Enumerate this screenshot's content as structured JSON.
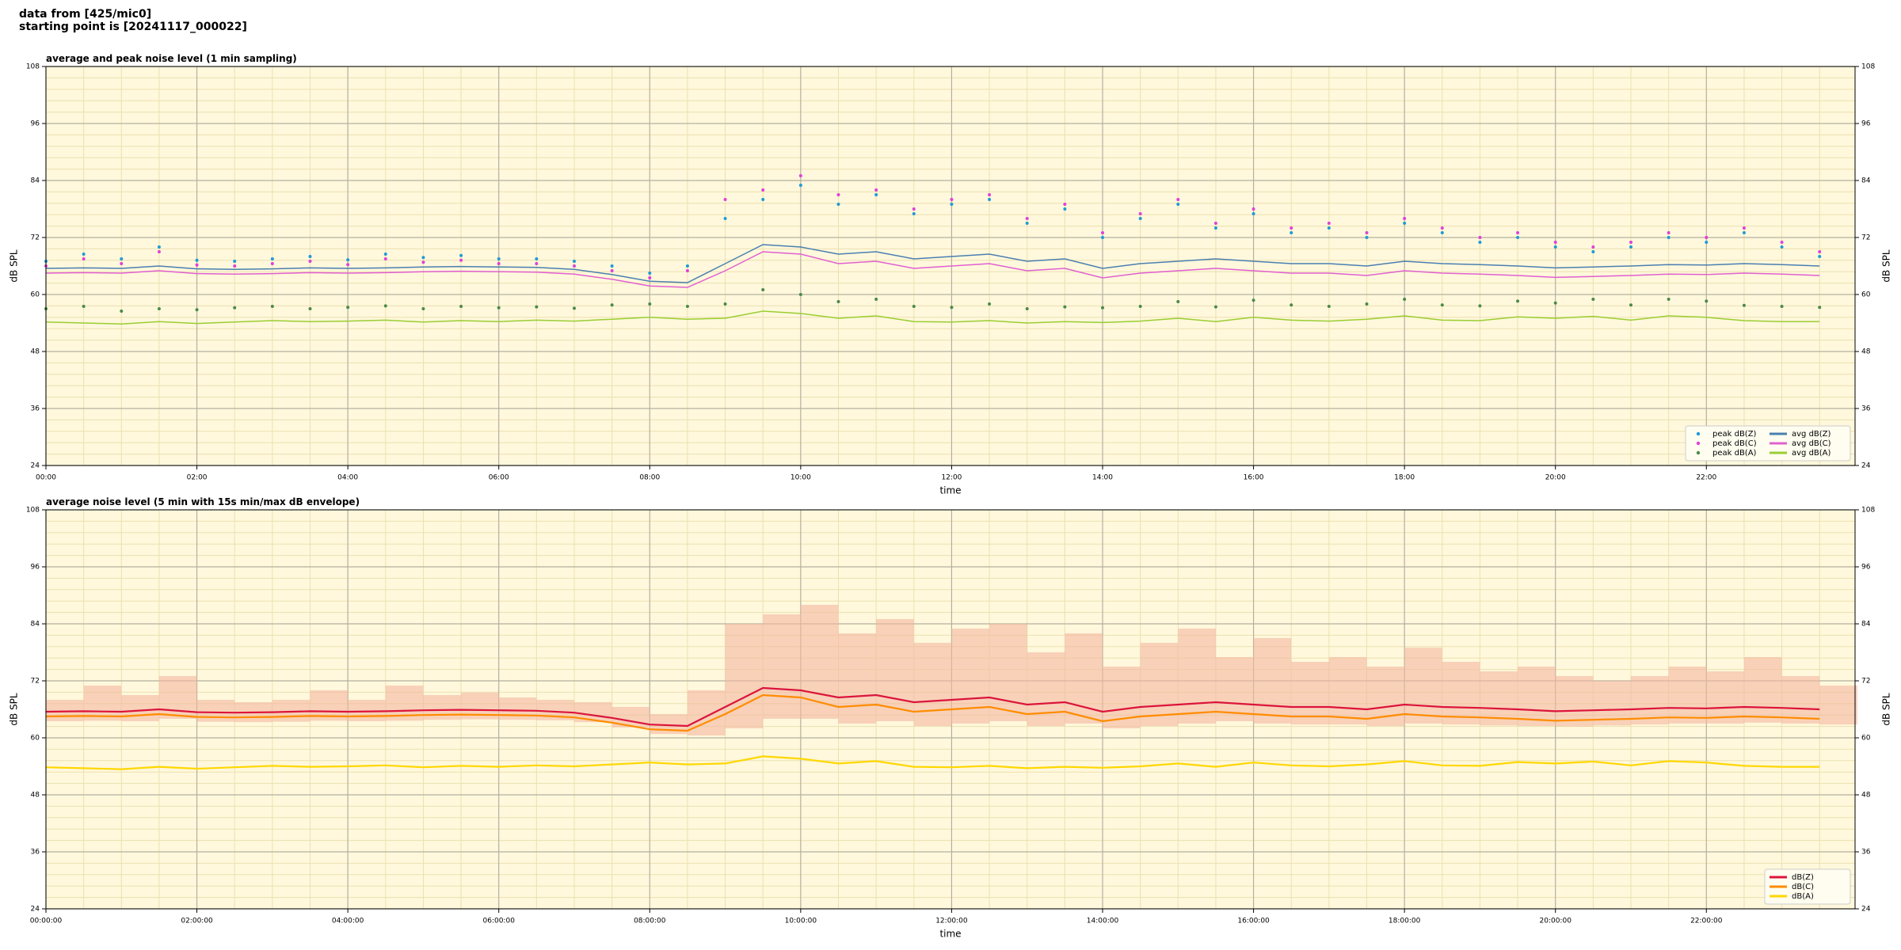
{
  "header": [
    "data from [425/mic0]",
    "starting point is [20241117_000022]"
  ],
  "chart_data": [
    {
      "type": "line",
      "title": "average and peak noise level (1 min sampling)",
      "xlabel": "time",
      "ylabel": "dB SPL",
      "facecolor": "#fff8dc",
      "grid": true,
      "legend": "lower right",
      "legend_columns": 2,
      "xlim": [
        0,
        23.97
      ],
      "ylim": [
        24,
        108
      ],
      "yticks": [
        24,
        36,
        48,
        60,
        72,
        84,
        96,
        108
      ],
      "xticks": [
        {
          "value": 0,
          "label": "00:00"
        },
        {
          "value": 2,
          "label": "02:00"
        },
        {
          "value": 4,
          "label": "04:00"
        },
        {
          "value": 6,
          "label": "06:00"
        },
        {
          "value": 8,
          "label": "08:00"
        },
        {
          "value": 10,
          "label": "10:00"
        },
        {
          "value": 12,
          "label": "12:00"
        },
        {
          "value": 14,
          "label": "14:00"
        },
        {
          "value": 16,
          "label": "16:00"
        },
        {
          "value": 18,
          "label": "18:00"
        },
        {
          "value": 20,
          "label": "20:00"
        },
        {
          "value": 22,
          "label": "22:00"
        }
      ],
      "x": [
        0,
        0.5,
        1,
        1.5,
        2,
        2.5,
        3,
        3.5,
        4,
        4.5,
        5,
        5.5,
        6,
        6.5,
        7,
        7.5,
        8,
        8.5,
        9,
        9.5,
        10,
        10.5,
        11,
        11.5,
        12,
        12.5,
        13,
        13.5,
        14,
        14.5,
        15,
        15.5,
        16,
        16.5,
        17,
        17.5,
        18,
        18.5,
        19,
        19.5,
        20,
        20.5,
        21,
        21.5,
        22,
        22.5,
        23,
        23.5
      ],
      "series": [
        {
          "name": "peak dB(Z)",
          "style": "dots",
          "color": "#1f9bd6",
          "values": [
            67,
            68.5,
            67.5,
            70,
            67.2,
            67,
            67.5,
            68,
            67.3,
            68.5,
            67.8,
            68.2,
            67.5,
            67.5,
            67,
            66,
            64.5,
            66,
            76,
            80,
            83,
            79,
            81,
            77,
            79,
            80,
            75,
            78,
            72,
            76,
            79,
            74,
            77,
            73,
            74,
            72,
            75,
            73,
            71,
            72,
            70,
            69,
            70,
            72,
            71,
            73,
            70,
            68
          ]
        },
        {
          "name": "peak dB(C)",
          "style": "dots",
          "color": "#e040d8",
          "values": [
            66,
            67.5,
            66.5,
            69,
            66.2,
            66,
            66.5,
            67,
            66.3,
            67.5,
            66.8,
            67.2,
            66.5,
            66.5,
            66,
            65,
            63.5,
            65,
            80,
            82,
            85,
            81,
            82,
            78,
            80,
            81,
            76,
            79,
            73,
            77,
            80,
            75,
            78,
            74,
            75,
            73,
            76,
            74,
            72,
            73,
            71,
            70,
            71,
            73,
            72,
            74,
            71,
            69
          ]
        },
        {
          "name": "peak dB(A)",
          "style": "dots",
          "color": "#4a8a4a",
          "values": [
            57,
            57.5,
            56.5,
            57,
            56.8,
            57.2,
            57.5,
            57,
            57.3,
            57.6,
            57,
            57.5,
            57.2,
            57.4,
            57.1,
            57.8,
            58,
            57.5,
            58,
            61,
            60,
            58.5,
            59,
            57.5,
            57.3,
            58,
            57,
            57.4,
            57.2,
            57.5,
            58.5,
            57.4,
            58.8,
            57.8,
            57.5,
            58,
            59,
            57.8,
            57.6,
            58.6,
            58.2,
            59,
            57.8,
            59,
            58.6,
            57.7,
            57.5,
            57.3
          ]
        },
        {
          "name": "avg dB(Z)",
          "style": "line",
          "color": "#4a7fb0",
          "values": [
            65.5,
            65.6,
            65.5,
            66,
            65.4,
            65.3,
            65.4,
            65.6,
            65.5,
            65.6,
            65.8,
            65.9,
            65.8,
            65.7,
            65.3,
            64.2,
            62.8,
            62.5,
            66.5,
            70.5,
            70,
            68.5,
            69,
            67.5,
            68,
            68.5,
            67,
            67.5,
            65.5,
            66.5,
            67,
            67.5,
            67,
            66.5,
            66.5,
            66,
            67,
            66.5,
            66.3,
            66,
            65.6,
            65.8,
            66,
            66.3,
            66.2,
            66.5,
            66.3,
            66
          ]
        },
        {
          "name": "avg dB(C)",
          "style": "line",
          "color": "#e060d0",
          "values": [
            64.5,
            64.6,
            64.5,
            65,
            64.4,
            64.3,
            64.4,
            64.6,
            64.5,
            64.6,
            64.8,
            64.9,
            64.8,
            64.7,
            64.3,
            63.2,
            61.8,
            61.5,
            65,
            69,
            68.5,
            66.5,
            67,
            65.5,
            66,
            66.5,
            65,
            65.5,
            63.5,
            64.5,
            65,
            65.5,
            65,
            64.5,
            64.5,
            64,
            65,
            64.5,
            64.3,
            64,
            63.6,
            63.8,
            64,
            64.3,
            64.2,
            64.5,
            64.3,
            64
          ]
        },
        {
          "name": "avg dB(A)",
          "style": "line",
          "color": "#9acd32",
          "values": [
            54.2,
            54,
            53.8,
            54.3,
            53.9,
            54.2,
            54.5,
            54.3,
            54.4,
            54.6,
            54.2,
            54.5,
            54.3,
            54.6,
            54.4,
            54.8,
            55.2,
            54.8,
            55,
            56.5,
            56,
            55,
            55.5,
            54.3,
            54.2,
            54.5,
            54,
            54.3,
            54.1,
            54.4,
            55,
            54.3,
            55.2,
            54.6,
            54.4,
            54.8,
            55.5,
            54.6,
            54.5,
            55.3,
            55,
            55.4,
            54.6,
            55.5,
            55.2,
            54.5,
            54.3,
            54.3
          ]
        }
      ]
    },
    {
      "type": "line",
      "title": "average noise level (5 min with 15s min/max dB envelope)",
      "xlabel": "time",
      "ylabel": "dB SPL",
      "facecolor": "#fff8dc",
      "grid": true,
      "legend": "lower right",
      "legend_columns": 1,
      "xlim": [
        0,
        23.97
      ],
      "ylim": [
        24,
        108
      ],
      "yticks": [
        24,
        36,
        48,
        60,
        72,
        84,
        96,
        108
      ],
      "xticks": [
        {
          "value": 0,
          "label": "00:00:00"
        },
        {
          "value": 2,
          "label": "02:00:00"
        },
        {
          "value": 4,
          "label": "04:00:00"
        },
        {
          "value": 6,
          "label": "06:00:00"
        },
        {
          "value": 8,
          "label": "08:00:00"
        },
        {
          "value": 10,
          "label": "10:00:00"
        },
        {
          "value": 12,
          "label": "12:00:00"
        },
        {
          "value": 14,
          "label": "14:00:00"
        },
        {
          "value": 16,
          "label": "16:00:00"
        },
        {
          "value": 18,
          "label": "18:00:00"
        },
        {
          "value": 20,
          "label": "20:00:00"
        },
        {
          "value": 22,
          "label": "22:00:00"
        }
      ],
      "x": [
        0,
        0.5,
        1,
        1.5,
        2,
        2.5,
        3,
        3.5,
        4,
        4.5,
        5,
        5.5,
        6,
        6.5,
        7,
        7.5,
        8,
        8.5,
        9,
        9.5,
        10,
        10.5,
        11,
        11.5,
        12,
        12.5,
        13,
        13.5,
        14,
        14.5,
        15,
        15.5,
        16,
        16.5,
        17,
        17.5,
        18,
        18.5,
        19,
        19.5,
        20,
        20.5,
        21,
        21.5,
        22,
        22.5,
        23,
        23.5
      ],
      "envelope": {
        "color": "#f4b8a0",
        "min": [
          63.5,
          63.6,
          63.5,
          64,
          63.4,
          63.3,
          63.4,
          63.6,
          63.5,
          63.6,
          63.8,
          63.9,
          63.8,
          63.7,
          63.3,
          62.2,
          60.8,
          60.5,
          62,
          64,
          64,
          63,
          63.5,
          62.5,
          63,
          63.5,
          62.5,
          63,
          62,
          62.5,
          63,
          63.5,
          63,
          62.8,
          62.8,
          62.5,
          63,
          62.8,
          62.6,
          62.5,
          62.4,
          62.6,
          62.8,
          63,
          63,
          63.2,
          63,
          62.8
        ],
        "max": [
          68,
          71,
          69,
          73,
          68,
          67.5,
          68,
          70,
          68,
          71,
          69,
          69.5,
          68.5,
          68,
          67.5,
          66.5,
          65,
          70,
          84,
          86,
          88,
          82,
          85,
          80,
          83,
          84,
          78,
          82,
          75,
          80,
          83,
          77,
          81,
          76,
          77,
          75,
          79,
          76,
          74,
          75,
          73,
          72,
          73,
          75,
          74,
          77,
          73,
          71
        ]
      },
      "series": [
        {
          "name": "dB(Z)",
          "style": "line",
          "color": "#dc143c",
          "values": [
            65.5,
            65.6,
            65.5,
            66,
            65.4,
            65.3,
            65.4,
            65.6,
            65.5,
            65.6,
            65.8,
            65.9,
            65.8,
            65.7,
            65.3,
            64.2,
            62.8,
            62.5,
            66.5,
            70.5,
            70,
            68.5,
            69,
            67.5,
            68,
            68.5,
            67,
            67.5,
            65.5,
            66.5,
            67,
            67.5,
            67,
            66.5,
            66.5,
            66,
            67,
            66.5,
            66.3,
            66,
            65.6,
            65.8,
            66,
            66.3,
            66.2,
            66.5,
            66.3,
            66
          ]
        },
        {
          "name": "dB(C)",
          "style": "line",
          "color": "#ff8c00",
          "values": [
            64.5,
            64.6,
            64.5,
            65,
            64.4,
            64.3,
            64.4,
            64.6,
            64.5,
            64.6,
            64.8,
            64.9,
            64.8,
            64.7,
            64.3,
            63.2,
            61.8,
            61.5,
            65,
            69,
            68.5,
            66.5,
            67,
            65.5,
            66,
            66.5,
            65,
            65.5,
            63.5,
            64.5,
            65,
            65.5,
            65,
            64.5,
            64.5,
            64,
            65,
            64.5,
            64.3,
            64,
            63.6,
            63.8,
            64,
            64.3,
            64.2,
            64.5,
            64.3,
            64
          ]
        },
        {
          "name": "dB(A)",
          "style": "line",
          "color": "#ffd700",
          "values": [
            53.8,
            53.6,
            53.4,
            53.9,
            53.5,
            53.8,
            54.1,
            53.9,
            54,
            54.2,
            53.8,
            54.1,
            53.9,
            54.2,
            54,
            54.4,
            54.8,
            54.4,
            54.6,
            56.1,
            55.6,
            54.6,
            55.1,
            53.9,
            53.8,
            54.1,
            53.6,
            53.9,
            53.7,
            54,
            54.6,
            53.9,
            54.8,
            54.2,
            54,
            54.4,
            55.1,
            54.2,
            54.1,
            54.9,
            54.6,
            55,
            54.2,
            55.1,
            54.8,
            54.1,
            53.9,
            53.9
          ]
        }
      ]
    }
  ]
}
